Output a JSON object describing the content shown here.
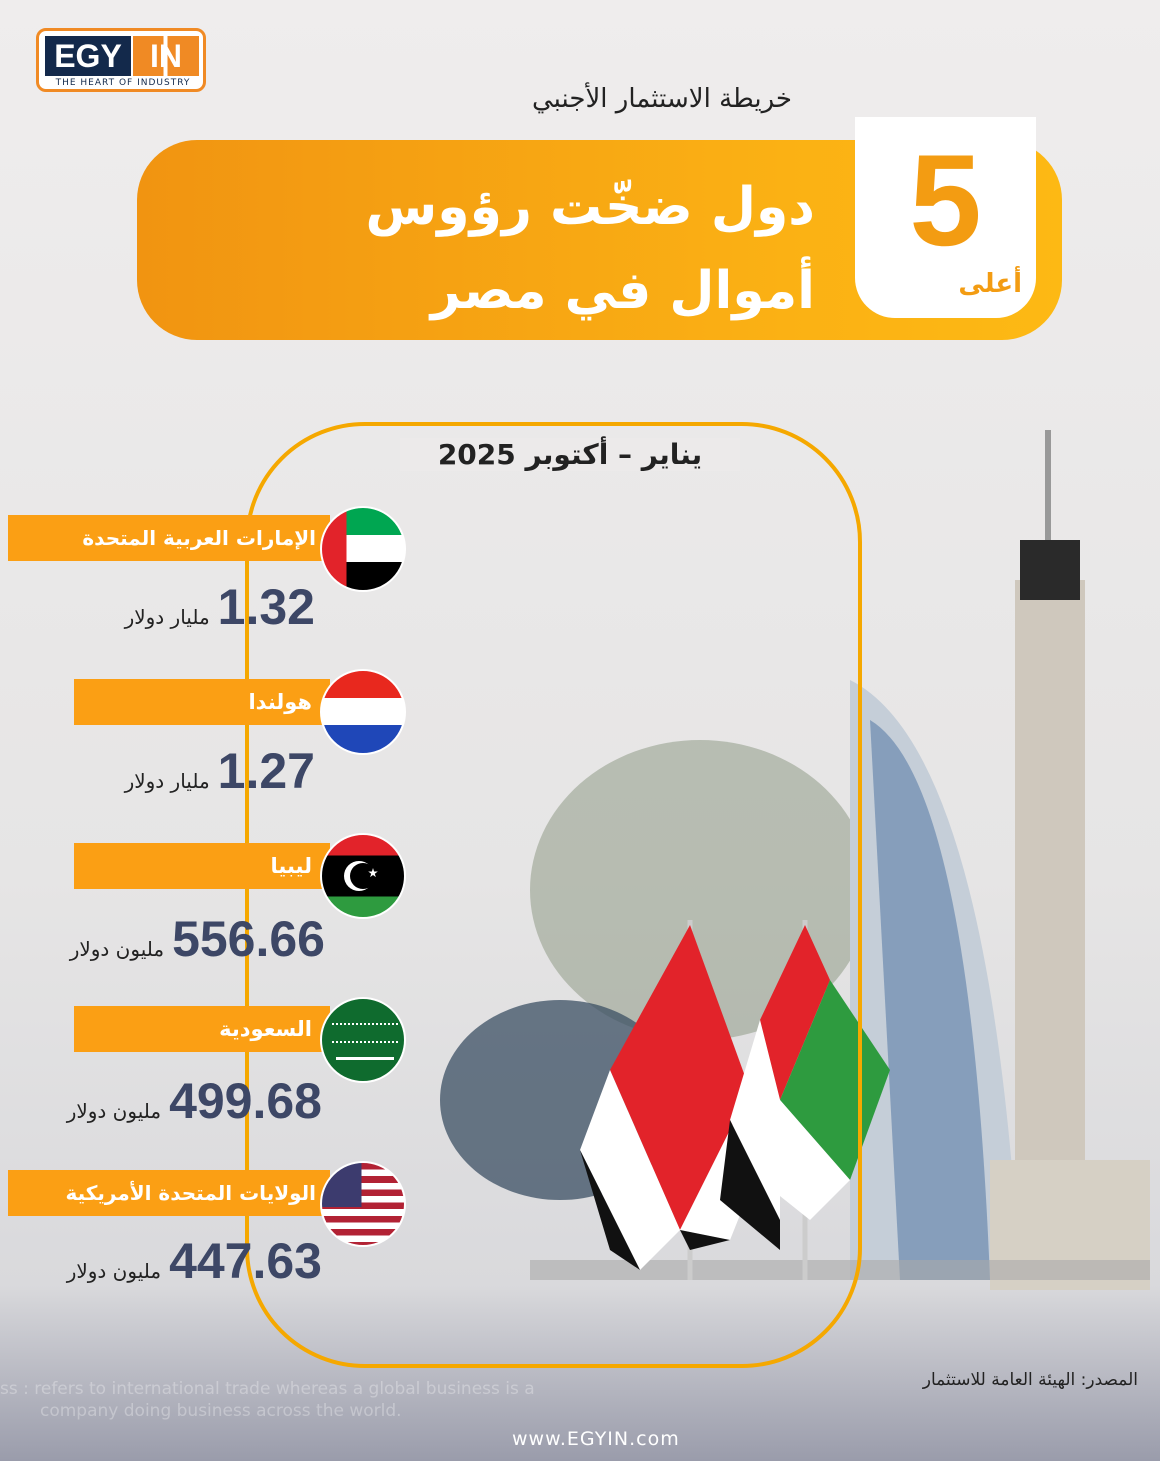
{
  "logo": {
    "brand_left": "EGY",
    "brand_right": "IN",
    "tagline": "THE HEART OF INDUSTRY"
  },
  "header": {
    "subtitle": "خريطة الاستثمار الأجنبي",
    "title_line1": "دول ضخّت رؤوس",
    "title_line2": "أموال في مصر",
    "rank_number": "5",
    "rank_label": "أعلى"
  },
  "period": "يناير – أكتوبر 2025",
  "countries": [
    {
      "name": "الإمارات العربية المتحدة",
      "value": "1.32",
      "unit": "مليار دولار"
    },
    {
      "name": "هولندا",
      "value": "1.27",
      "unit": "مليار دولار"
    },
    {
      "name": "ليبيا",
      "value": "556.66",
      "unit": "مليون دولار"
    },
    {
      "name": "السعودية",
      "value": "499.68",
      "unit": "مليون دولار"
    },
    {
      "name": "الولايات المتحدة الأمريكية",
      "value": "447.63",
      "unit": "مليون دولار"
    }
  ],
  "footer": {
    "source": "المصدر: الهيئة العامة للاستثمار",
    "watermark_line1": "ss : refers to international trade whereas a global business is a",
    "watermark_line2": "company doing business across the world.",
    "url": "www.EGYIN.com"
  },
  "colors": {
    "accent": "#fb9f14",
    "value_text": "#3d4766",
    "brand_navy": "#13294b"
  }
}
